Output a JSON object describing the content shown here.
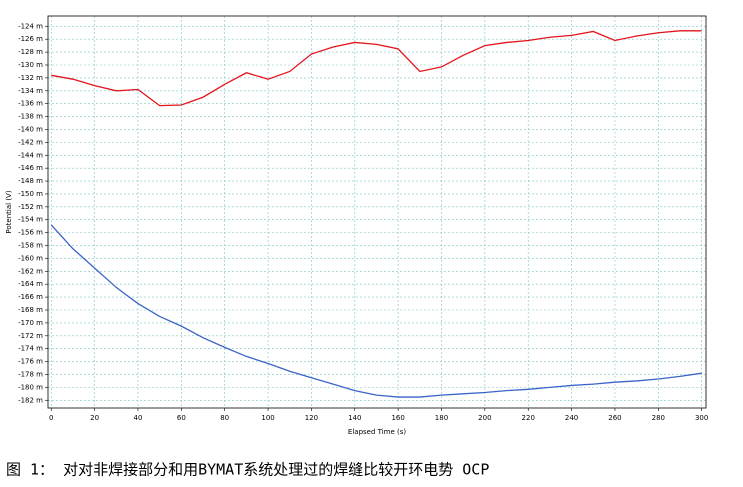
{
  "chart_data": {
    "type": "line",
    "x_label": "Elapsed Time (s)",
    "y_label": "Potential (V)",
    "caption": "图 1： 对对非焊接部分和用BYMAT系统处理过的焊缝比较开环电势 OCP",
    "x": [
      0,
      10,
      20,
      30,
      40,
      50,
      60,
      70,
      80,
      90,
      100,
      110,
      120,
      130,
      140,
      150,
      160,
      170,
      180,
      190,
      200,
      210,
      220,
      230,
      240,
      250,
      260,
      270,
      280,
      290,
      300
    ],
    "series": [
      {
        "color": "#e3141c",
        "values": [
          -0.1316,
          -0.1322,
          -0.1332,
          -0.134,
          -0.1338,
          -0.1363,
          -0.1362,
          -0.135,
          -0.133,
          -0.1312,
          -0.1322,
          -0.131,
          -0.1283,
          -0.1272,
          -0.1265,
          -0.1268,
          -0.1275,
          -0.131,
          -0.1303,
          -0.1285,
          -0.127,
          -0.1265,
          -0.1262,
          -0.1257,
          -0.1254,
          -0.1248,
          -0.1262,
          -0.1255,
          -0.125,
          -0.1247,
          -0.1247
        ]
      },
      {
        "color": "#3a64c8",
        "values": [
          -0.1548,
          -0.1585,
          -0.1615,
          -0.1645,
          -0.167,
          -0.169,
          -0.1705,
          -0.1723,
          -0.1738,
          -0.1752,
          -0.1763,
          -0.1775,
          -0.1785,
          -0.1795,
          -0.1805,
          -0.1812,
          -0.1815,
          -0.1815,
          -0.1812,
          -0.181,
          -0.1808,
          -0.1805,
          -0.1803,
          -0.18,
          -0.1797,
          -0.1795,
          -0.1792,
          -0.179,
          -0.1787,
          -0.1783,
          -0.1778
        ]
      }
    ],
    "xlim": [
      -1.5,
      302
    ],
    "xticks": [
      0,
      20,
      40,
      60,
      80,
      100,
      120,
      140,
      160,
      180,
      200,
      220,
      240,
      260,
      280,
      300
    ],
    "ylim": [
      -0.1832,
      -0.1224
    ],
    "yticks": [
      {
        "value": -0.124,
        "label": "-124 m"
      },
      {
        "value": -0.126,
        "label": "-126 m"
      },
      {
        "value": -0.128,
        "label": "-128 m"
      },
      {
        "value": -0.13,
        "label": "-130 m"
      },
      {
        "value": -0.132,
        "label": "-132 m"
      },
      {
        "value": -0.134,
        "label": "-134 m"
      },
      {
        "value": -0.136,
        "label": "-136 m"
      },
      {
        "value": -0.138,
        "label": "-138 m"
      },
      {
        "value": -0.14,
        "label": "-140 m"
      },
      {
        "value": -0.142,
        "label": "-142 m"
      },
      {
        "value": -0.144,
        "label": "-144 m"
      },
      {
        "value": -0.146,
        "label": "-146 m"
      },
      {
        "value": -0.148,
        "label": "-148 m"
      },
      {
        "value": -0.15,
        "label": "-150 m"
      },
      {
        "value": -0.152,
        "label": "-152 m"
      },
      {
        "value": -0.154,
        "label": "-154 m"
      },
      {
        "value": -0.156,
        "label": "-156 m"
      },
      {
        "value": -0.158,
        "label": "-158 m"
      },
      {
        "value": -0.16,
        "label": "-160 m"
      },
      {
        "value": -0.162,
        "label": "-162 m"
      },
      {
        "value": -0.164,
        "label": "-164 m"
      },
      {
        "value": -0.166,
        "label": "-166 m"
      },
      {
        "value": -0.168,
        "label": "-168 m"
      },
      {
        "value": -0.17,
        "label": "-170 m"
      },
      {
        "value": -0.172,
        "label": "-172 m"
      },
      {
        "value": -0.174,
        "label": "-174 m"
      },
      {
        "value": -0.176,
        "label": "-176 m"
      },
      {
        "value": -0.178,
        "label": "-178 m"
      },
      {
        "value": -0.18,
        "label": "-180 m"
      },
      {
        "value": -0.182,
        "label": "-182 m"
      }
    ],
    "grid": true
  }
}
